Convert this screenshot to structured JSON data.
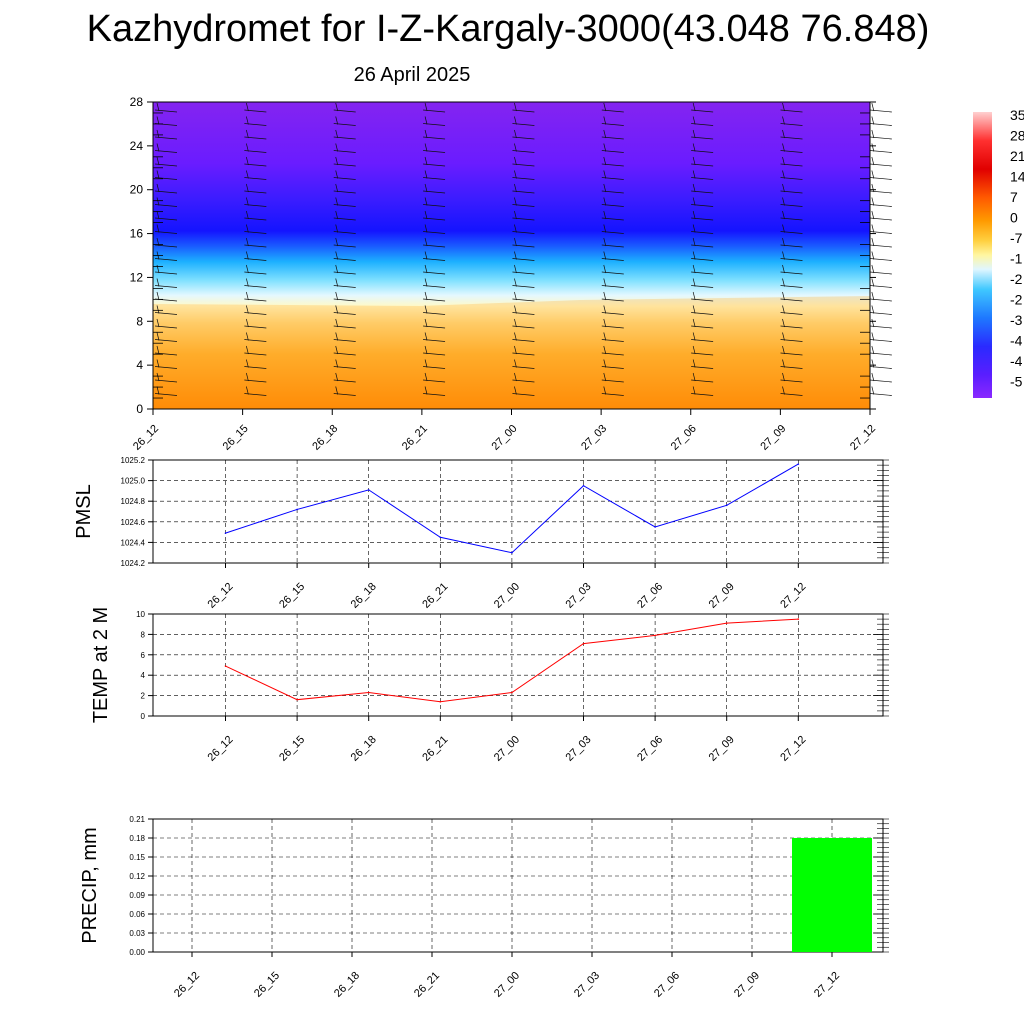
{
  "title": "Kazhydromet for I-Z-Kargaly-3000(43.048 76.848)",
  "subtitle": "26 April 2025",
  "colors": {
    "pmsl_line": "#0000ff",
    "temp_line": "#ff0000",
    "precip_bar": "#00ff00",
    "contour_top": "#7f1eff",
    "contour_mid": "#1a1aff",
    "contour_cyan": "#2ec8ff",
    "contour_pale": "#fff8c0",
    "contour_bottom": "#ff8c00"
  },
  "chart_data": [
    {
      "type": "heatmap",
      "name": "vertical temperature cross-section with wind barbs",
      "x_ticks": [
        "26_12",
        "26_15",
        "26_18",
        "26_21",
        "27_00",
        "27_03",
        "27_06",
        "27_09",
        "27_12"
      ],
      "ylim": [
        0,
        28
      ],
      "y_ticks": [
        "0",
        "4",
        "8",
        "12",
        "16",
        "20",
        "24",
        "28"
      ],
      "colorbar_labels": [
        "35",
        "28",
        "21",
        "14",
        "7",
        "0",
        "-7",
        "-1",
        "-2",
        "-2",
        "-3",
        "-4",
        "-4",
        "-5"
      ]
    },
    {
      "type": "line",
      "ylabel": "PMSL",
      "x": [
        "26_12",
        "26_15",
        "26_18",
        "26_21",
        "27_00",
        "27_03",
        "27_06",
        "27_09",
        "27_12"
      ],
      "values": [
        1024.49,
        1024.72,
        1024.91,
        1024.45,
        1024.3,
        1024.95,
        1024.55,
        1024.76,
        1025.16
      ],
      "ylim": [
        1024.2,
        1025.2
      ],
      "y_ticks": [
        "1024.2",
        "1024.4",
        "1024.6",
        "1024.8",
        "1025.0",
        "1025.2"
      ],
      "grid": true
    },
    {
      "type": "line",
      "ylabel": "TEMP at 2 M",
      "x": [
        "26_12",
        "26_15",
        "26_18",
        "26_21",
        "27_00",
        "27_03",
        "27_06",
        "27_09",
        "27_12"
      ],
      "values": [
        4.9,
        1.6,
        2.3,
        1.4,
        2.3,
        7.1,
        7.9,
        9.1,
        9.5
      ],
      "ylim": [
        0,
        10
      ],
      "y_ticks": [
        "0",
        "2",
        "4",
        "6",
        "8",
        "10"
      ],
      "grid": true
    },
    {
      "type": "bar",
      "ylabel": "PRECIP, mm",
      "categories": [
        "26_12",
        "26_15",
        "26_18",
        "26_21",
        "27_00",
        "27_03",
        "27_06",
        "27_09",
        "27_12"
      ],
      "values": [
        0,
        0,
        0,
        0,
        0,
        0,
        0,
        0,
        0.18
      ],
      "ylim": [
        0,
        0.21
      ],
      "y_ticks": [
        "0.00",
        "0.03",
        "0.06",
        "0.09",
        "0.12",
        "0.15",
        "0.18",
        "0.21"
      ],
      "grid": true
    }
  ]
}
